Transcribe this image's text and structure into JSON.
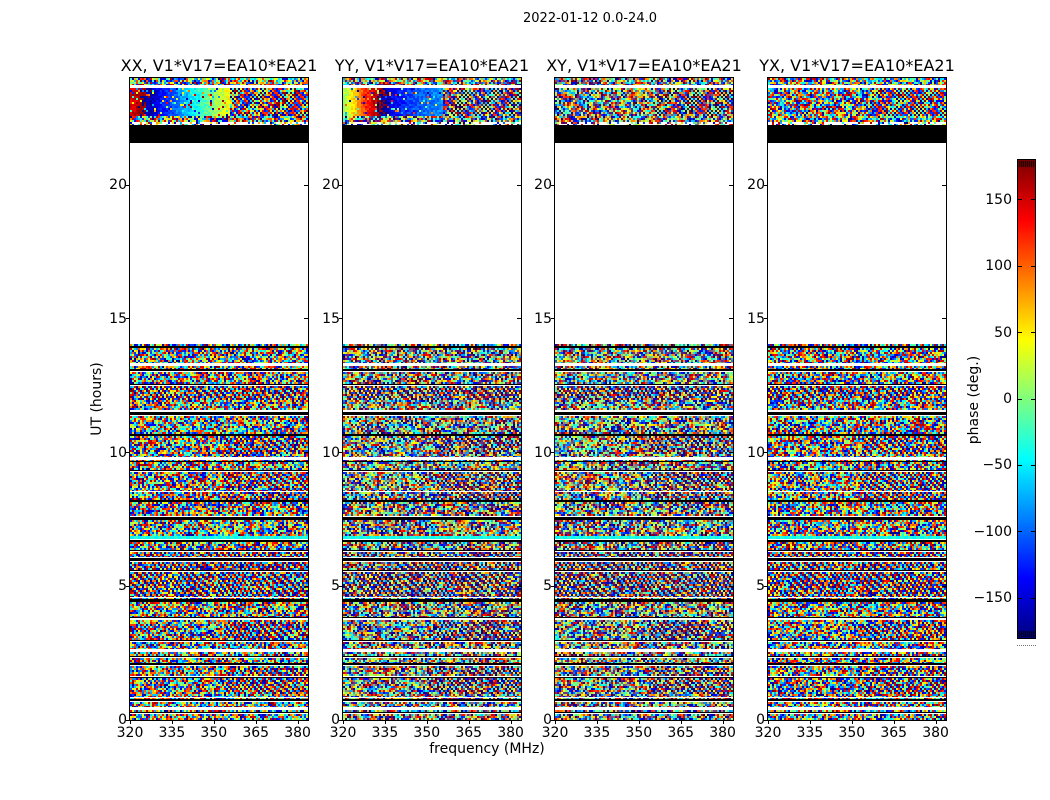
{
  "chart_data": {
    "type": "heatmap",
    "title": "2022-01-12 0.0-24.0",
    "subplot_titles": [
      "XX, V1*V17=EA10*EA21",
      "YY, V1*V17=EA10*EA21",
      "XY, V1*V17=EA10*EA21",
      "YX, V1*V17=EA10*EA21"
    ],
    "polarizations": [
      "XX",
      "YY",
      "XY",
      "YX"
    ],
    "baseline": "V1*V17=EA10*EA21",
    "xlabel": "frequency (MHz)",
    "ylabel": "UT (hours)",
    "x_ticks": [
      320,
      335,
      350,
      365,
      380
    ],
    "x_range_mhz": [
      320,
      383.7
    ],
    "y_ticks": [
      0,
      5,
      10,
      15,
      20
    ],
    "y_range_hours": [
      0,
      24
    ],
    "grid": false,
    "colormap": "jet",
    "colorbar": {
      "label": "phase (deg.)",
      "ticks": [
        150,
        100,
        50,
        0,
        -50,
        -100,
        -150
      ],
      "vmin": -180,
      "vmax": 180,
      "position": "right"
    },
    "data_description": "Interferometric visibility phase vs frequency and time; phases are mostly wrapped noise (speckle over full -180..180 range) with flagged (black) and missing (white) time rows",
    "time_coverage_hours": [
      [
        0.0,
        14.05
      ],
      [
        21.6,
        24.0
      ]
    ],
    "blank_gap_hours": [
      14.05,
      21.6
    ],
    "solid_black_band_hours": [
      21.6,
      22.27
    ],
    "top_scan": {
      "noise_rows_hours": [
        23.72,
        24.0
      ],
      "white_row_hours": [
        23.65,
        23.72
      ],
      "smooth_phase_band_hours": [
        22.6,
        23.62
      ],
      "smooth_band_panels": [
        "XX",
        "YY"
      ],
      "striped_right_fraction": 0.56,
      "sparse_row_hours": [
        22.33,
        22.48
      ]
    },
    "flagged_black_rows": [
      [
        0.3,
        1
      ],
      [
        0.75,
        2
      ],
      [
        1.6,
        1
      ],
      [
        2.1,
        2
      ],
      [
        2.4,
        1
      ],
      [
        3.0,
        1
      ],
      [
        3.85,
        1
      ],
      [
        4.45,
        3
      ],
      [
        5.6,
        1
      ],
      [
        6.0,
        3
      ],
      [
        6.35,
        1
      ],
      [
        6.7,
        2
      ],
      [
        7.5,
        3
      ],
      [
        8.2,
        2
      ],
      [
        9.35,
        1
      ],
      [
        9.7,
        1
      ],
      [
        10.65,
        2
      ],
      [
        11.45,
        3
      ],
      [
        12.55,
        1
      ],
      [
        13.1,
        2
      ],
      [
        13.95,
        2
      ]
    ],
    "white_gap_rows": [
      [
        0.45,
        2
      ],
      [
        0.86,
        1
      ],
      [
        1.65,
        1
      ],
      [
        2.6,
        2
      ],
      [
        3.8,
        1
      ],
      [
        4.6,
        1
      ],
      [
        6.1,
        1
      ],
      [
        7.6,
        2
      ],
      [
        8.55,
        1
      ],
      [
        9.8,
        2
      ],
      [
        11.6,
        1
      ],
      [
        13.3,
        2
      ]
    ],
    "moire_full_width_bands_hours": [
      [
        4.6,
        6.3
      ],
      [
        12.0,
        12.5
      ]
    ],
    "moire_right_half_bands_hours": [
      [
        1.0,
        2.0
      ],
      [
        3.0,
        3.7
      ],
      [
        8.3,
        9.3
      ],
      [
        10.0,
        10.6
      ]
    ],
    "smooth_cyan_row_hour": 6.8
  }
}
